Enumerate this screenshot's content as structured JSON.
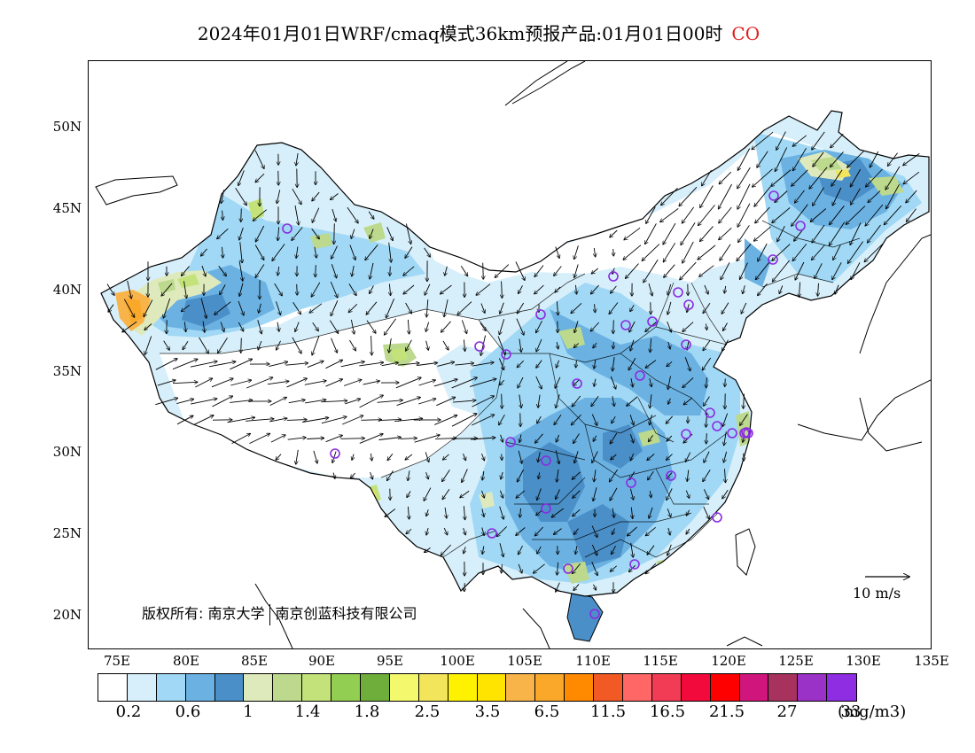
{
  "title": {
    "main": "2024年01月01日WRF/cmaq模式36km预报产品:01月01日00时",
    "species": "CO",
    "species_color": "#e02020"
  },
  "axes": {
    "lat_labels": [
      "50N",
      "45N",
      "40N",
      "35N",
      "30N",
      "25N",
      "20N"
    ],
    "lon_labels": [
      "75E",
      "80E",
      "85E",
      "90E",
      "95E",
      "100E",
      "105E",
      "110E",
      "115E",
      "120E",
      "125E",
      "130E",
      "135E"
    ]
  },
  "copyright": {
    "prefix": "版权所有: 南京大学",
    "suffix": "南京创蓝科技有限公司"
  },
  "wind_reference": {
    "label": "10 m/s"
  },
  "colorbar": {
    "colors": [
      "#ffffff",
      "#d7effa",
      "#a0d8f5",
      "#6bb2e3",
      "#4a8fc7",
      "#dfeabc",
      "#bcd98d",
      "#c3e37a",
      "#92ce51",
      "#6fae3b",
      "#f4f86c",
      "#f2e55c",
      "#fff200",
      "#ffe400",
      "#f9b449",
      "#f9a82a",
      "#ff8a00",
      "#f15a24",
      "#ff6666",
      "#f23c55",
      "#f20a3c",
      "#ff0000",
      "#d0167d",
      "#a8325e",
      "#9b32c8",
      "#8e2de2"
    ],
    "tick_labels": [
      "0.2",
      "0.6",
      "1",
      "1.4",
      "1.8",
      "2.5",
      "3.5",
      "6.5",
      "11.5",
      "16.5",
      "21.5",
      "27",
      "33"
    ],
    "unit": "(mg/m3)"
  }
}
